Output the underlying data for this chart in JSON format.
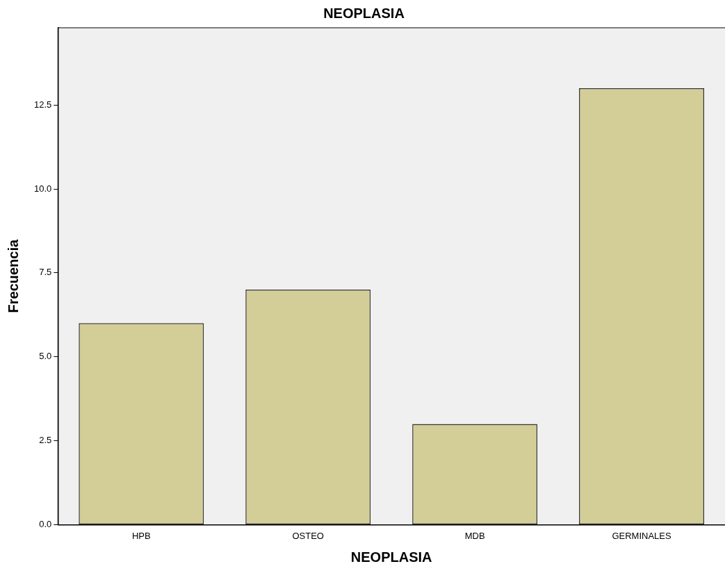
{
  "chart_data": {
    "type": "bar",
    "title": "NEOPLASIA",
    "xlabel": "NEOPLASIA",
    "ylabel": "Frecuencia",
    "categories": [
      "HPB",
      "OSTEO",
      "MDB",
      "GERMINALES"
    ],
    "values": [
      6,
      7,
      3,
      13
    ],
    "color": "#d3ce97",
    "ylim": [
      0,
      14.8
    ],
    "yticks": [
      {
        "value": 0,
        "label": "0.0"
      },
      {
        "value": 2.5,
        "label": "2.5"
      },
      {
        "value": 5,
        "label": "5.0"
      },
      {
        "value": 7.5,
        "label": "7.5"
      },
      {
        "value": 10,
        "label": "10.0"
      },
      {
        "value": 12.5,
        "label": "12.5"
      }
    ],
    "grid": false,
    "legend": false
  }
}
